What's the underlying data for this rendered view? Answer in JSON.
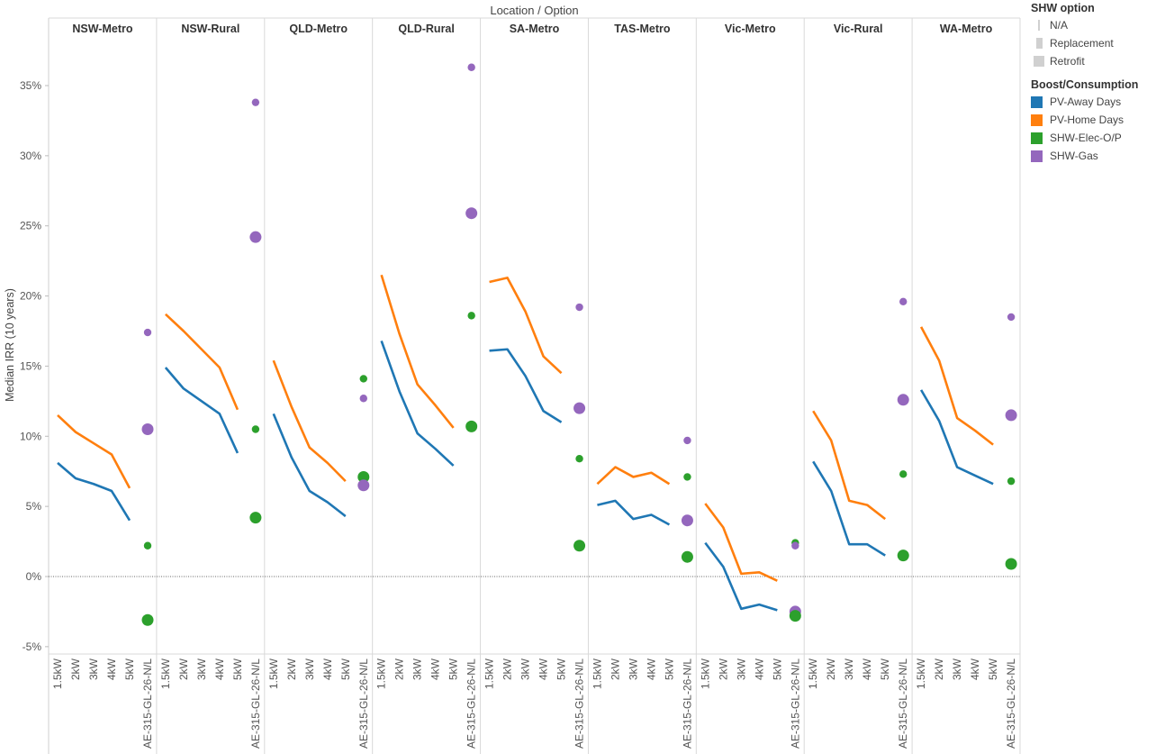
{
  "chart_data": {
    "type": "line",
    "title_top": "Location  /  Option",
    "ylabel": "Median IRR (10 years)",
    "ylim": [
      -5.5,
      39
    ],
    "y_ticks": [
      -5,
      0,
      5,
      10,
      15,
      20,
      25,
      30,
      35
    ],
    "y_tick_labels": [
      "-5%",
      "0%",
      "5%",
      "10%",
      "15%",
      "20%",
      "25%",
      "30%",
      "35%"
    ],
    "options": [
      "1.5kW",
      "2kW",
      "3kW",
      "4kW",
      "5kW",
      "AE-315-GL-26-N/L"
    ],
    "panels": [
      {
        "location": "NSW-Metro",
        "away": [
          8.1,
          7.0,
          6.6,
          6.1,
          4.0
        ],
        "home": [
          11.5,
          10.3,
          9.5,
          8.7,
          6.3
        ],
        "points": [
          {
            "series": "SHW-Gas",
            "size": "Retrofit",
            "value": 10.5
          },
          {
            "series": "SHW-Gas",
            "size": "Replacement",
            "value": 17.4
          },
          {
            "series": "SHW-Elec-O/P",
            "size": "Replacement",
            "value": 2.2
          },
          {
            "series": "SHW-Elec-O/P",
            "size": "Retrofit",
            "value": -3.1
          }
        ]
      },
      {
        "location": "NSW-Rural",
        "away": [
          14.9,
          13.4,
          12.5,
          11.6,
          8.8
        ],
        "home": [
          18.7,
          17.5,
          16.2,
          14.9,
          11.9
        ],
        "points": [
          {
            "series": "SHW-Gas",
            "size": "Replacement",
            "value": 33.8
          },
          {
            "series": "SHW-Gas",
            "size": "Retrofit",
            "value": 24.2
          },
          {
            "series": "SHW-Elec-O/P",
            "size": "Replacement",
            "value": 10.5
          },
          {
            "series": "SHW-Elec-O/P",
            "size": "Retrofit",
            "value": 4.2
          }
        ]
      },
      {
        "location": "QLD-Metro",
        "away": [
          11.6,
          8.5,
          6.1,
          5.3,
          4.3
        ],
        "home": [
          15.4,
          12.1,
          9.2,
          8.1,
          6.8
        ],
        "points": [
          {
            "series": "SHW-Elec-O/P",
            "size": "Replacement",
            "value": 14.1
          },
          {
            "series": "SHW-Gas",
            "size": "Replacement",
            "value": 12.7
          },
          {
            "series": "SHW-Elec-O/P",
            "size": "Retrofit",
            "value": 7.1
          },
          {
            "series": "SHW-Gas",
            "size": "Retrofit",
            "value": 6.5
          }
        ]
      },
      {
        "location": "QLD-Rural",
        "away": [
          16.8,
          13.2,
          10.2,
          9.1,
          7.9
        ],
        "home": [
          21.5,
          17.3,
          13.7,
          12.2,
          10.6
        ],
        "points": [
          {
            "series": "SHW-Gas",
            "size": "Replacement",
            "value": 36.3
          },
          {
            "series": "SHW-Gas",
            "size": "Retrofit",
            "value": 25.9
          },
          {
            "series": "SHW-Elec-O/P",
            "size": "Replacement",
            "value": 18.6
          },
          {
            "series": "SHW-Elec-O/P",
            "size": "Retrofit",
            "value": 10.7
          }
        ]
      },
      {
        "location": "SA-Metro",
        "away": [
          16.1,
          16.2,
          14.3,
          11.8,
          11.0
        ],
        "home": [
          21.0,
          21.3,
          18.9,
          15.7,
          14.5
        ],
        "points": [
          {
            "series": "SHW-Gas",
            "size": "Replacement",
            "value": 19.2
          },
          {
            "series": "SHW-Gas",
            "size": "Retrofit",
            "value": 12.0
          },
          {
            "series": "SHW-Elec-O/P",
            "size": "Replacement",
            "value": 8.4
          },
          {
            "series": "SHW-Elec-O/P",
            "size": "Retrofit",
            "value": 2.2
          }
        ]
      },
      {
        "location": "TAS-Metro",
        "away": [
          5.1,
          5.4,
          4.1,
          4.4,
          3.7
        ],
        "home": [
          6.6,
          7.8,
          7.1,
          7.4,
          6.6
        ],
        "points": [
          {
            "series": "SHW-Gas",
            "size": "Replacement",
            "value": 9.7
          },
          {
            "series": "SHW-Elec-O/P",
            "size": "Replacement",
            "value": 7.1
          },
          {
            "series": "SHW-Gas",
            "size": "Retrofit",
            "value": 4.0
          },
          {
            "series": "SHW-Elec-O/P",
            "size": "Retrofit",
            "value": 1.4
          }
        ]
      },
      {
        "location": "Vic-Metro",
        "away": [
          2.4,
          0.7,
          -2.3,
          -2.0,
          -2.4
        ],
        "home": [
          5.2,
          3.5,
          0.2,
          0.3,
          -0.3
        ],
        "points": [
          {
            "series": "SHW-Elec-O/P",
            "size": "Replacement",
            "value": 2.4
          },
          {
            "series": "SHW-Gas",
            "size": "Replacement",
            "value": 2.2
          },
          {
            "series": "SHW-Gas",
            "size": "Retrofit",
            "value": -2.5
          },
          {
            "series": "SHW-Elec-O/P",
            "size": "Retrofit",
            "value": -2.8
          }
        ]
      },
      {
        "location": "Vic-Rural",
        "away": [
          8.2,
          6.1,
          2.3,
          2.3,
          1.5
        ],
        "home": [
          11.8,
          9.7,
          5.4,
          5.1,
          4.1
        ],
        "points": [
          {
            "series": "SHW-Gas",
            "size": "Replacement",
            "value": 19.6
          },
          {
            "series": "SHW-Gas",
            "size": "Retrofit",
            "value": 12.6
          },
          {
            "series": "SHW-Elec-O/P",
            "size": "Replacement",
            "value": 7.3
          },
          {
            "series": "SHW-Elec-O/P",
            "size": "Retrofit",
            "value": 1.5
          }
        ]
      },
      {
        "location": "WA-Metro",
        "away": [
          13.3,
          11.1,
          7.8,
          7.2,
          6.6
        ],
        "home": [
          17.8,
          15.4,
          11.3,
          10.4,
          9.4
        ],
        "points": [
          {
            "series": "SHW-Gas",
            "size": "Replacement",
            "value": 18.5
          },
          {
            "series": "SHW-Gas",
            "size": "Retrofit",
            "value": 11.5
          },
          {
            "series": "SHW-Elec-O/P",
            "size": "Replacement",
            "value": 6.8
          },
          {
            "series": "SHW-Elec-O/P",
            "size": "Retrofit",
            "value": 0.9
          }
        ]
      }
    ]
  },
  "legend": {
    "size_title": "SHW option",
    "size_items": [
      "N/A",
      "Replacement",
      "Retrofit"
    ],
    "color_title": "Boost/Consumption",
    "color_items": [
      {
        "label": "PV-Away Days",
        "color": "#1f77b4"
      },
      {
        "label": "PV-Home Days",
        "color": "#ff7f0e"
      },
      {
        "label": "SHW-Elec-O/P",
        "color": "#2ca02c"
      },
      {
        "label": "SHW-Gas",
        "color": "#9467bd"
      }
    ]
  }
}
